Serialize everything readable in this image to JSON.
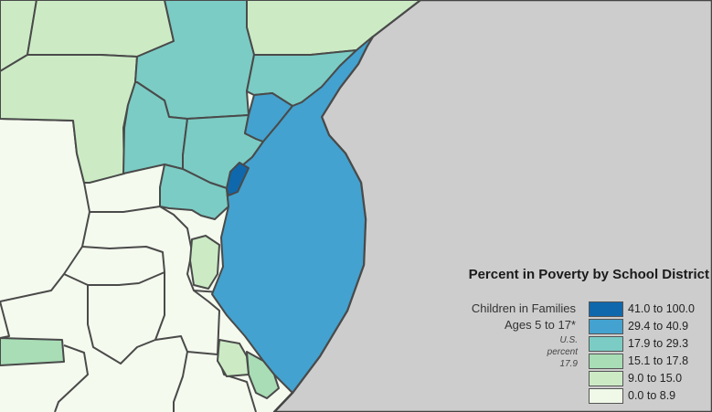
{
  "colors": {
    "ocean": "#cdcdcd",
    "district_border": "#4a4a4a",
    "land_outline": "#444444"
  },
  "legend": {
    "title": "Percent in Poverty by School District",
    "subtitle_lines": [
      "Children in Families",
      "Ages 5 to 17*"
    ],
    "note_lines": [
      "U.S.",
      "percent",
      "17.9"
    ],
    "classes": [
      {
        "label": "41.0 to 100.0",
        "color": "#0f68ac"
      },
      {
        "label": "29.4 to 40.9",
        "color": "#43a2cf"
      },
      {
        "label": "17.9 to 29.3",
        "color": "#7bccc4"
      },
      {
        "label": "15.1 to 17.8",
        "color": "#a8ddb6"
      },
      {
        "label": "9.0 to 15.0",
        "color": "#ccebc5"
      },
      {
        "label": "0.0 to 8.9",
        "color": "#f0f9e8"
      }
    ]
  },
  "districts": [
    {
      "id": "nw-edge",
      "class": 4
    },
    {
      "id": "north-1",
      "class": 4
    },
    {
      "id": "north-2",
      "class": 4
    },
    {
      "id": "west-mid",
      "class": 4
    },
    {
      "id": "central-north",
      "class": 2
    },
    {
      "id": "north-coast",
      "class": 2
    },
    {
      "id": "central-west",
      "class": 2
    },
    {
      "id": "central-mid",
      "class": 2
    },
    {
      "id": "central-south",
      "class": 2
    },
    {
      "id": "coastal-small",
      "class": 1
    },
    {
      "id": "peninsula",
      "class": 1
    },
    {
      "id": "urban-core",
      "class": 0
    },
    {
      "id": "south-west-strip",
      "class": 3
    },
    {
      "id": "inland-strip",
      "class": 4
    },
    {
      "id": "south-coast",
      "class": 3
    },
    {
      "id": "south-tip",
      "class": 4
    }
  ]
}
